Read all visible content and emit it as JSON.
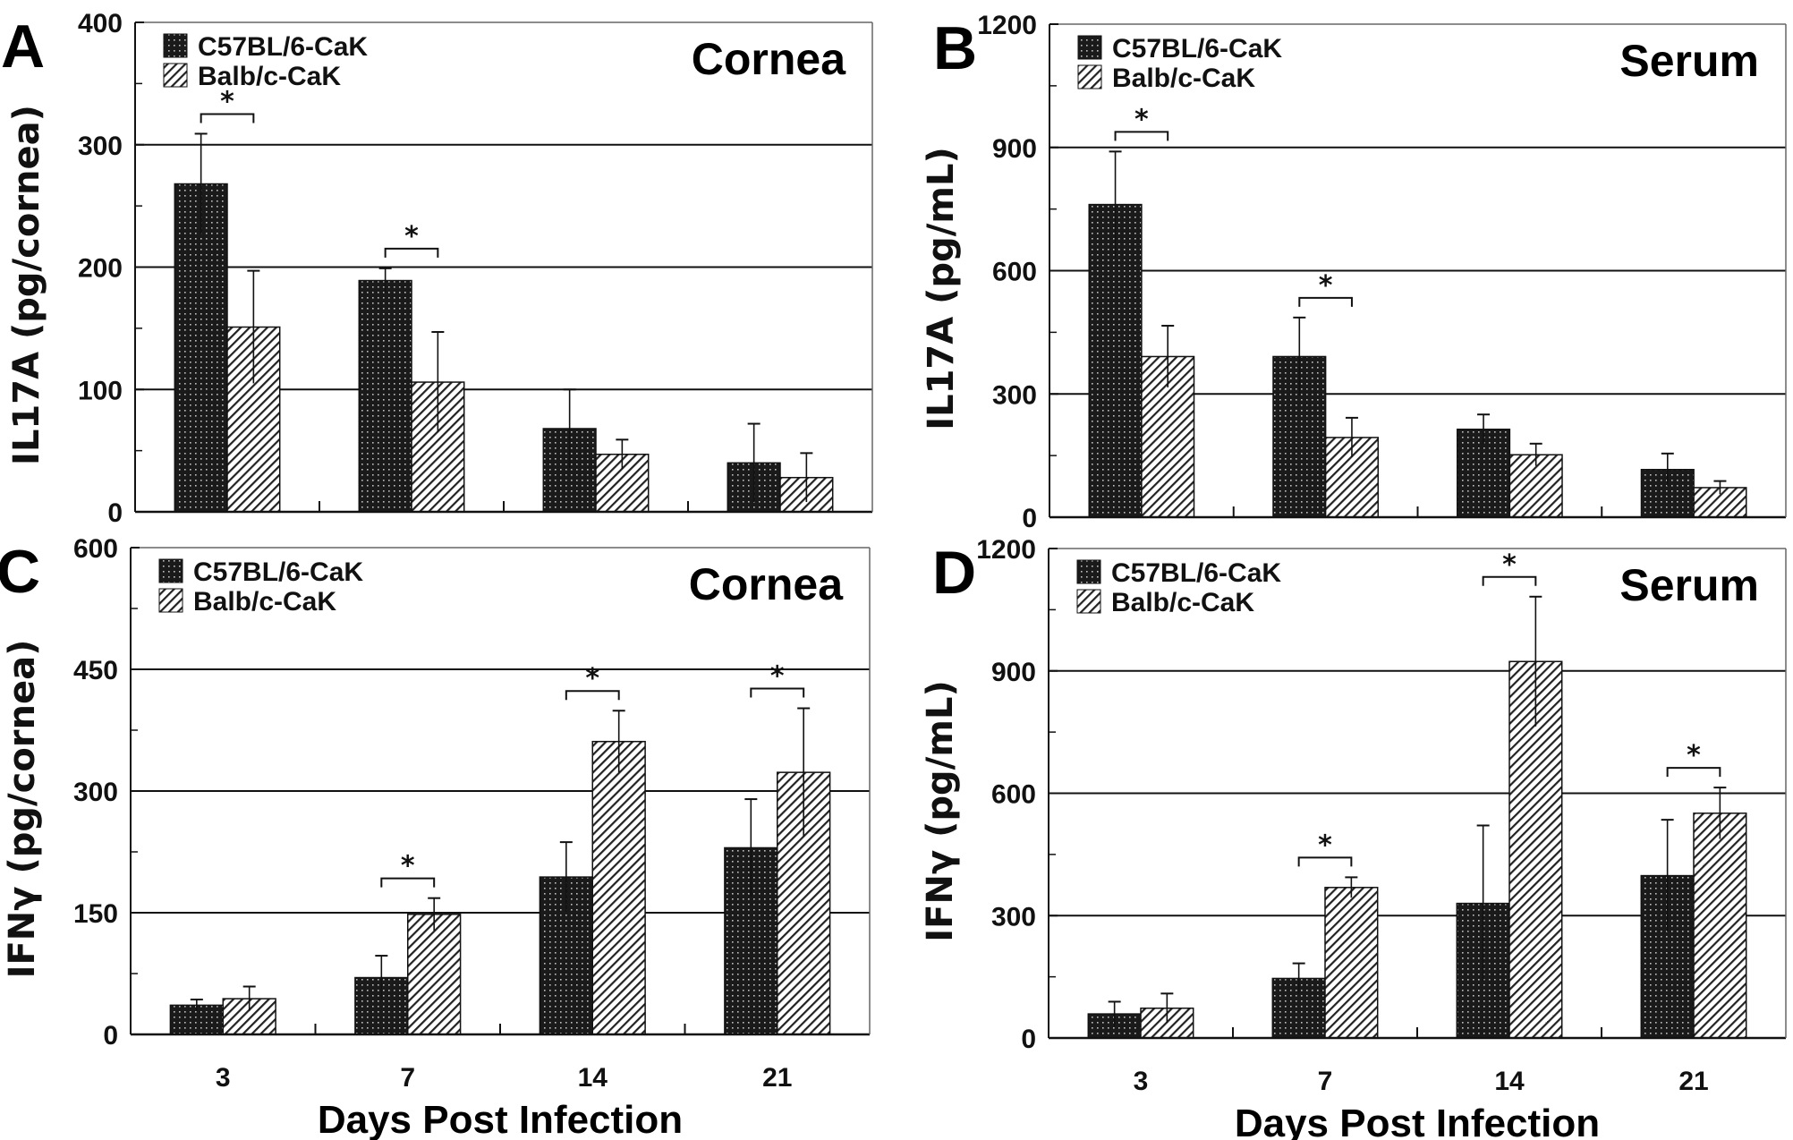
{
  "colors": {
    "dark_bar": "#1a1a1a",
    "dark_dot": "#bfbfbf",
    "hatch_line": "#222222",
    "hatch_bg": "#ffffff",
    "axis": "#111111",
    "grid": "#111111"
  },
  "chart_data": [
    {
      "id": "A",
      "type": "bar",
      "panel_letter": "A",
      "title": "Cornea",
      "ylabel": "IL17A (pg/cornea)",
      "xlabel": "",
      "categories": [
        "3",
        "7",
        "14",
        "21"
      ],
      "show_category_labels": false,
      "ylim": [
        0,
        400
      ],
      "yticks": [
        0,
        100,
        200,
        300,
        400
      ],
      "ytick_labels": [
        "0",
        "100",
        "200",
        "300",
        "400"
      ],
      "grid": true,
      "legend": "top-left",
      "series": [
        {
          "name": "C57BL/6-CaK",
          "pattern": "dots",
          "values": [
            268,
            189,
            68,
            40
          ],
          "error": [
            41,
            10,
            32,
            32
          ]
        },
        {
          "name": "Balb/c-CaK",
          "pattern": "hatch",
          "values": [
            151,
            106,
            47,
            28
          ],
          "error": [
            46,
            41,
            12,
            20
          ]
        }
      ],
      "significance": [
        {
          "category": "3",
          "label": "*"
        },
        {
          "category": "7",
          "label": "*"
        }
      ]
    },
    {
      "id": "B",
      "type": "bar",
      "panel_letter": "B",
      "title": "Serum",
      "ylabel": "IL17A (pg/mL)",
      "xlabel": "",
      "categories": [
        "3",
        "7",
        "14",
        "21"
      ],
      "show_category_labels": false,
      "ylim": [
        0,
        1200
      ],
      "yticks": [
        0,
        300,
        600,
        900,
        1200
      ],
      "ytick_labels": [
        "0",
        "300",
        "600",
        "900",
        "1200"
      ],
      "grid": true,
      "legend": "top-left",
      "series": [
        {
          "name": "C57BL/6-CaK",
          "pattern": "dots",
          "values": [
            761,
            391,
            214,
            116
          ],
          "error": [
            129,
            95,
            36,
            39
          ]
        },
        {
          "name": "Balb/c-CaK",
          "pattern": "hatch",
          "values": [
            391,
            194,
            152,
            72
          ],
          "error": [
            75,
            48,
            27,
            16
          ]
        }
      ],
      "significance": [
        {
          "category": "3",
          "label": "*"
        },
        {
          "category": "7",
          "label": "*"
        }
      ]
    },
    {
      "id": "C",
      "type": "bar",
      "panel_letter": "C",
      "title": "Cornea",
      "ylabel": "IFNγ (pg/cornea)",
      "xlabel": "Days Post Infection",
      "categories": [
        "3",
        "7",
        "14",
        "21"
      ],
      "show_category_labels": true,
      "ylim": [
        0,
        600
      ],
      "yticks": [
        0,
        150,
        300,
        450,
        600
      ],
      "ytick_labels": [
        "0",
        "150",
        "300",
        "450",
        "600"
      ],
      "grid": true,
      "legend": "top-left",
      "series": [
        {
          "name": "C57BL/6-CaK",
          "pattern": "dots",
          "values": [
            36,
            70,
            194,
            230
          ],
          "error": [
            7,
            27,
            43,
            60
          ]
        },
        {
          "name": "Balb/c-CaK",
          "pattern": "hatch",
          "values": [
            44,
            148,
            361,
            323
          ],
          "error": [
            15,
            20,
            38,
            79
          ]
        }
      ],
      "significance": [
        {
          "category": "7",
          "label": "*"
        },
        {
          "category": "14",
          "label": "*"
        },
        {
          "category": "21",
          "label": "*"
        }
      ]
    },
    {
      "id": "D",
      "type": "bar",
      "panel_letter": "D",
      "title": "Serum",
      "ylabel": "IFNγ (pg/mL)",
      "xlabel": "Days Post Infection",
      "categories": [
        "3",
        "7",
        "14",
        "21"
      ],
      "show_category_labels": true,
      "ylim": [
        0,
        1200
      ],
      "yticks": [
        0,
        300,
        600,
        900,
        1200
      ],
      "ytick_labels": [
        "0",
        "300",
        "600",
        "900",
        "1200"
      ],
      "grid": true,
      "legend": "top-left",
      "series": [
        {
          "name": "C57BL/6-CaK",
          "pattern": "dots",
          "values": [
            59,
            146,
            330,
            398
          ],
          "error": [
            30,
            37,
            191,
            137
          ]
        },
        {
          "name": "Balb/c-CaK",
          "pattern": "hatch",
          "values": [
            73,
            369,
            923,
            551
          ],
          "error": [
            36,
            25,
            159,
            63
          ]
        }
      ],
      "significance": [
        {
          "category": "7",
          "label": "*"
        },
        {
          "category": "14",
          "label": "*"
        },
        {
          "category": "21",
          "label": "*"
        }
      ]
    }
  ]
}
